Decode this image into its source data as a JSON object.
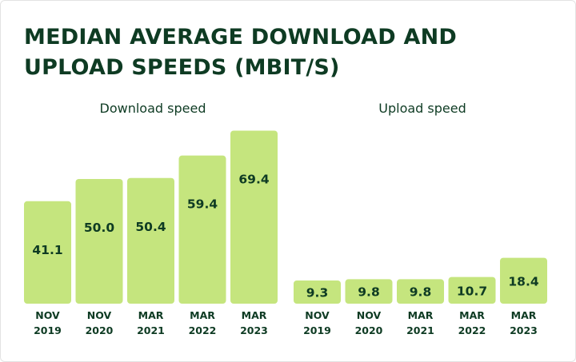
{
  "title": {
    "line1": "MEDIAN AVERAGE DOWNLOAD AND",
    "line2": "UPLOAD SPEEDS (MBIT/S)"
  },
  "colors": {
    "bar": "#c5e57e",
    "text": "#0e3b23"
  },
  "chart_data": [
    {
      "type": "bar",
      "title": "Download speed",
      "categories": [
        [
          "NOV",
          "2019"
        ],
        [
          "NOV",
          "2020"
        ],
        [
          "MAR",
          "2021"
        ],
        [
          "MAR",
          "2022"
        ],
        [
          "MAR",
          "2023"
        ]
      ],
      "values": [
        41.1,
        50.0,
        50.4,
        59.4,
        69.4
      ],
      "value_labels": [
        "41.1",
        "50.0",
        "50.4",
        "59.4",
        "69.4"
      ],
      "xlabel": "",
      "ylabel": "",
      "grid": false
    },
    {
      "type": "bar",
      "title": "Upload speed",
      "categories": [
        [
          "NOV",
          "2019"
        ],
        [
          "NOV",
          "2020"
        ],
        [
          "MAR",
          "2021"
        ],
        [
          "MAR",
          "2022"
        ],
        [
          "MAR",
          "2023"
        ]
      ],
      "values": [
        9.3,
        9.8,
        9.8,
        10.7,
        18.4
      ],
      "value_labels": [
        "9.3",
        "9.8",
        "9.8",
        "10.7",
        "18.4"
      ],
      "xlabel": "",
      "ylabel": "",
      "grid": false
    }
  ]
}
